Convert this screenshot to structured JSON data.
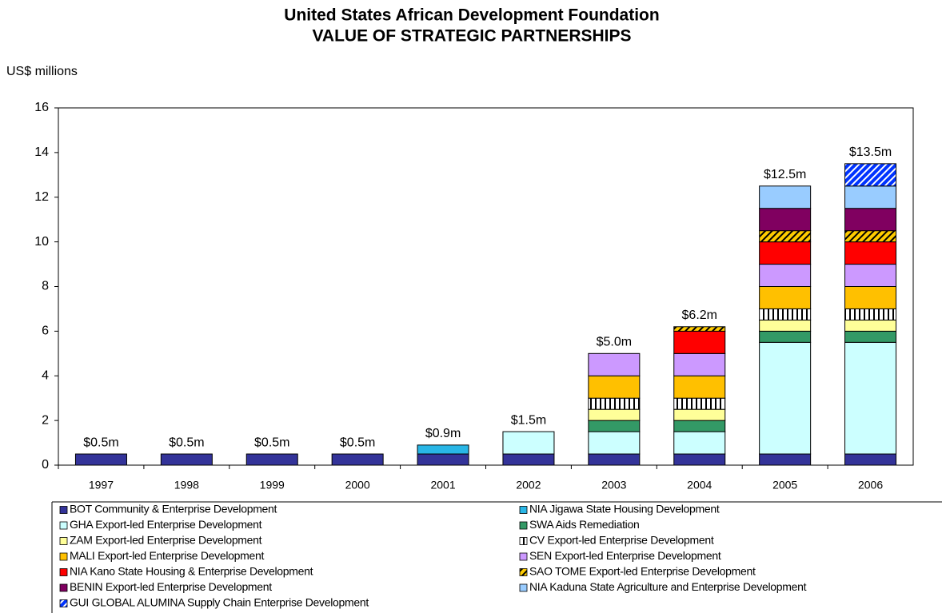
{
  "chart_data": {
    "type": "stacked_bar",
    "title": "United States African Development Foundation",
    "subtitle": "VALUE OF STRATEGIC PARTNERSHIPS",
    "y_label": "US$ millions",
    "categories": [
      "1997",
      "1998",
      "1999",
      "2000",
      "2001",
      "2002",
      "2003",
      "2004",
      "2005",
      "2006"
    ],
    "series": [
      {
        "name": "BOT Community & Enterprise Development",
        "color": "#333399",
        "values": [
          0.5,
          0.5,
          0.5,
          0.5,
          0.5,
          0.5,
          0.5,
          0.5,
          0.5,
          0.5
        ]
      },
      {
        "name": "NIA Jigawa State Housing Development",
        "color": "#29b6e6",
        "values": [
          null,
          null,
          null,
          null,
          0.4,
          null,
          null,
          null,
          null,
          null
        ]
      },
      {
        "name": "GHA Export-led Enterprise Development",
        "color": "#ccffff",
        "values": [
          null,
          null,
          null,
          null,
          null,
          1.0,
          1.0,
          1.0,
          5.0,
          5.0
        ]
      },
      {
        "name": "SWA Aids Remediation",
        "color": "#339966",
        "values": [
          null,
          null,
          null,
          null,
          null,
          null,
          0.5,
          0.5,
          0.5,
          0.5
        ]
      },
      {
        "name": "ZAM Export-led Enterprise Development",
        "color": "#ffff99",
        "values": [
          null,
          null,
          null,
          null,
          null,
          null,
          0.5,
          0.5,
          0.5,
          0.5
        ]
      },
      {
        "name": "CV Export-led Enterprise Development",
        "color": "#000000",
        "pattern": "vertical-stripes",
        "values": [
          null,
          null,
          null,
          null,
          null,
          null,
          0.5,
          0.5,
          0.5,
          0.5
        ]
      },
      {
        "name": "MALI Export-led Enterprise Development",
        "color": "#ffc000",
        "values": [
          null,
          null,
          null,
          null,
          null,
          null,
          1.0,
          1.0,
          1.0,
          1.0
        ]
      },
      {
        "name": "SEN Export-led Enterprise Development",
        "color": "#cc99ff",
        "values": [
          null,
          null,
          null,
          null,
          null,
          null,
          1.0,
          1.0,
          1.0,
          1.0
        ]
      },
      {
        "name": "NIA Kano State Housing & Enterprise Development",
        "color": "#ff0000",
        "values": [
          null,
          null,
          null,
          null,
          null,
          null,
          null,
          1.0,
          1.0,
          1.0
        ]
      },
      {
        "name": "SAO TOME Export-led Enterprise Development",
        "color": "#ffcc00",
        "pattern": "diagonal-dark",
        "values": [
          null,
          null,
          null,
          null,
          null,
          null,
          null,
          0.2,
          0.5,
          0.5
        ]
      },
      {
        "name": "BENIN Export-led Enterprise Development",
        "color": "#800060",
        "values": [
          null,
          null,
          null,
          null,
          null,
          null,
          null,
          null,
          1.0,
          1.0
        ]
      },
      {
        "name": "NIA Kaduna State Agriculture and Enterprise Development",
        "color": "#99ccff",
        "values": [
          null,
          null,
          null,
          null,
          null,
          null,
          null,
          null,
          1.0,
          1.0
        ]
      },
      {
        "name": "GUI GLOBAL ALUMINA Supply Chain Enterprise Development",
        "color": "#0033ff",
        "pattern": "diagonal-light",
        "values": [
          null,
          null,
          null,
          null,
          null,
          null,
          null,
          null,
          null,
          1.0
        ]
      }
    ],
    "totals": {
      "values": [
        0.5,
        0.5,
        0.5,
        0.5,
        0.9,
        1.5,
        5.0,
        6.2,
        12.5,
        13.5
      ],
      "value_labels": [
        "$0.5m",
        "$0.5m",
        "$0.5m",
        "$0.5m",
        "$0.9m",
        "$1.5m",
        "$5.0m",
        "$6.2m",
        "$12.5m",
        "$13.5m"
      ]
    },
    "ylim": [
      0,
      16
    ],
    "yticks": [
      0,
      2,
      4,
      6,
      8,
      10,
      12,
      14,
      16
    ],
    "grid": false
  }
}
